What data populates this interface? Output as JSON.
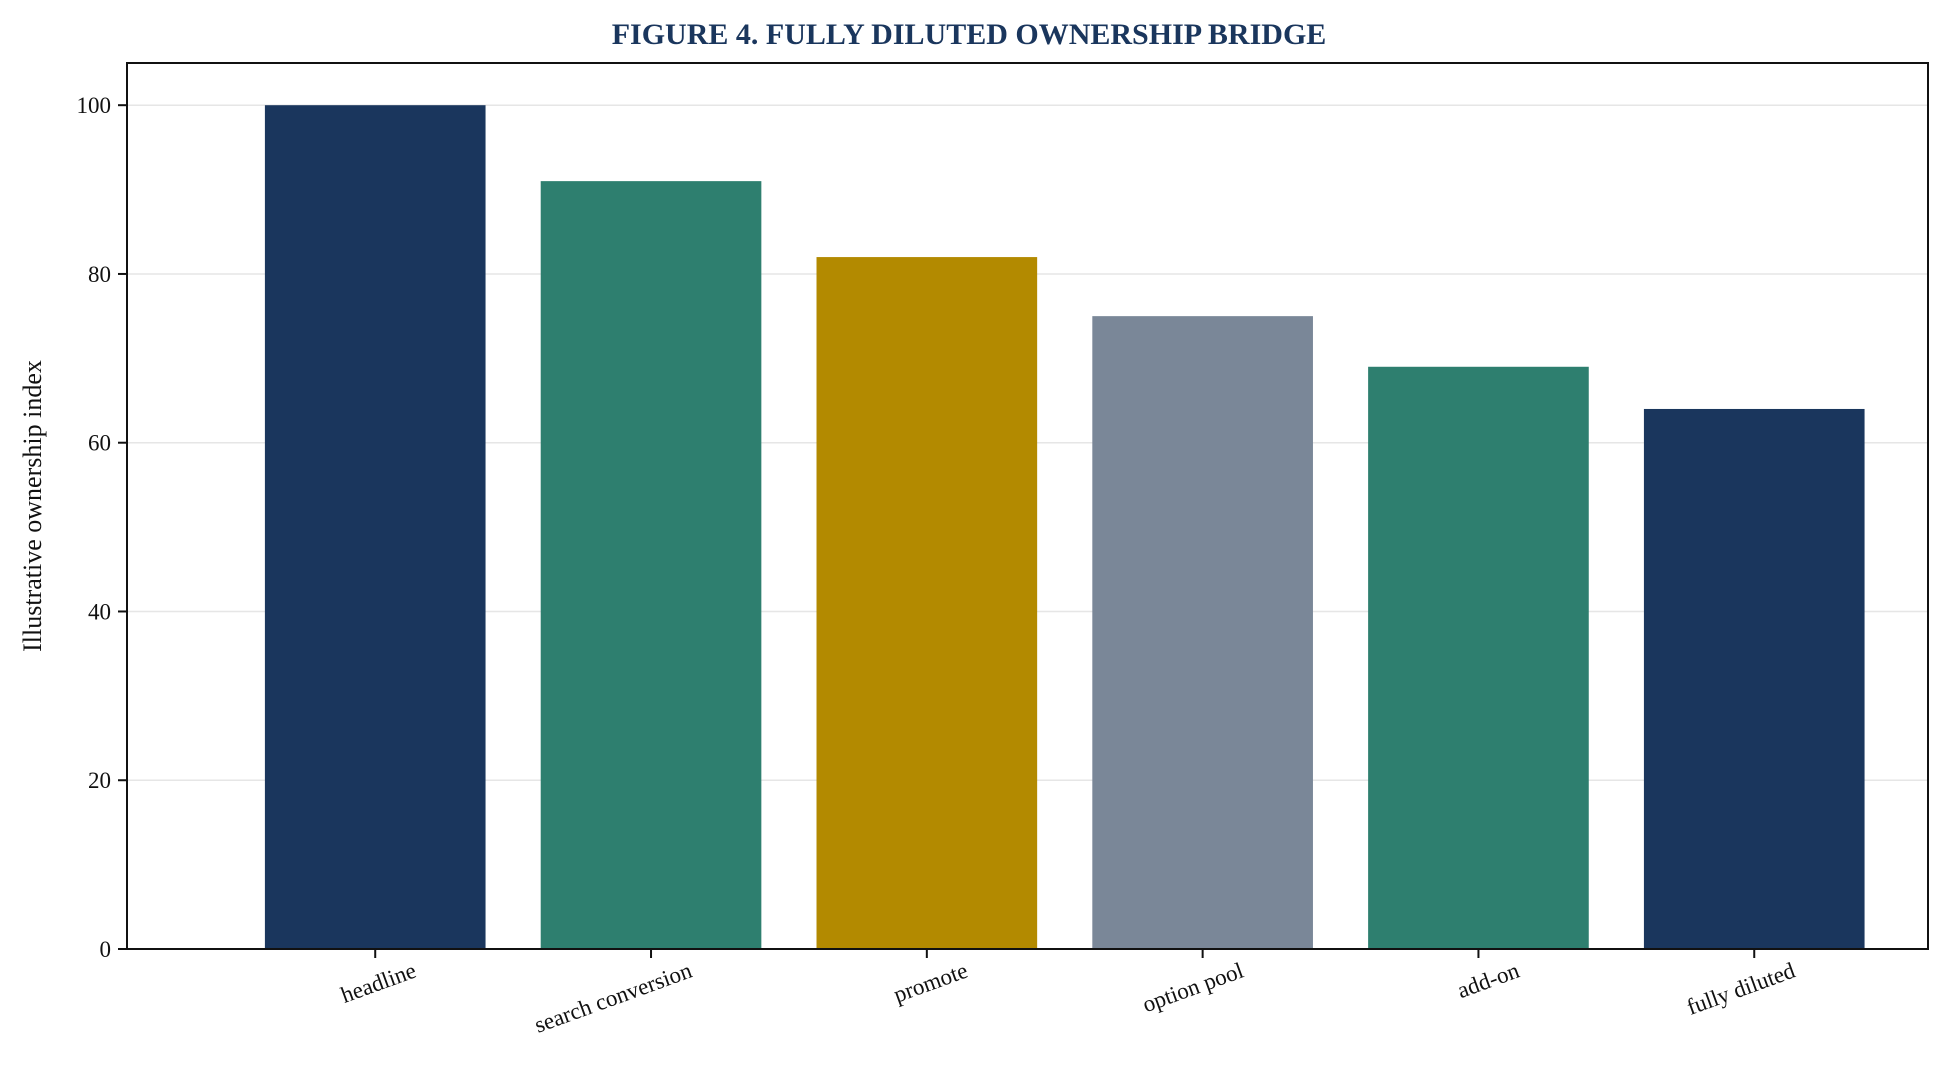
{
  "chart_data": {
    "type": "bar",
    "title": "FIGURE 4. FULLY DILUTED OWNERSHIP BRIDGE",
    "xlabel": "",
    "ylabel": "Illustrative ownership index",
    "categories": [
      "headline",
      "search conversion",
      "promote",
      "option pool",
      "add-on",
      "fully diluted"
    ],
    "values": [
      100,
      91,
      82,
      75,
      69,
      64
    ],
    "bar_colors": [
      "#1a365d",
      "#2e7f6f",
      "#b38a00",
      "#7a8798",
      "#2e7f6f",
      "#1a365d"
    ],
    "ylim": [
      0,
      105
    ],
    "yticks": [
      0,
      20,
      40,
      60,
      80,
      100
    ],
    "grid": "horizontal",
    "legend": "none",
    "colors": {
      "title": "#1a365d",
      "axis": "#111111",
      "grid": "#e6e6e6"
    }
  }
}
